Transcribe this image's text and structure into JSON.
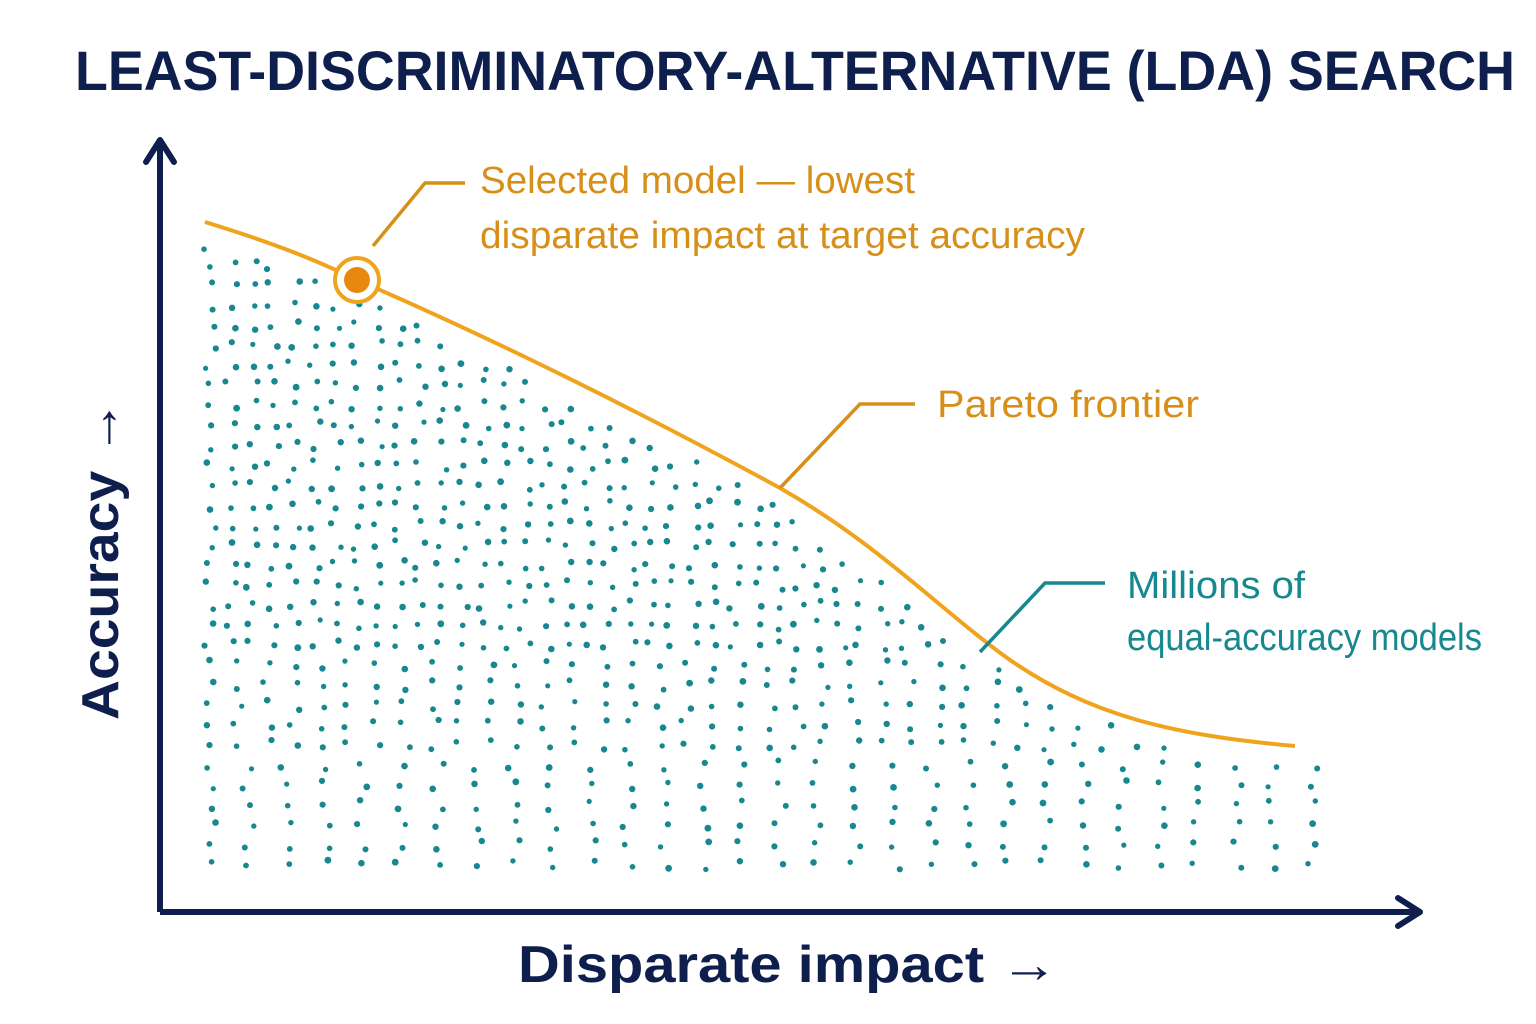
{
  "title": "LEAST-DISCRIMINATORY-ALTERNATIVE (LDA) SEARCH",
  "y_axis_label": "Accuracy →",
  "x_axis_label": "Disparate impact →",
  "annotations": {
    "selected": [
      "Selected model — lowest",
      "disparate impact at target accuracy"
    ],
    "frontier": [
      "Pareto frontier"
    ],
    "models": [
      "Millions of",
      "equal-accuracy models"
    ]
  }
}
